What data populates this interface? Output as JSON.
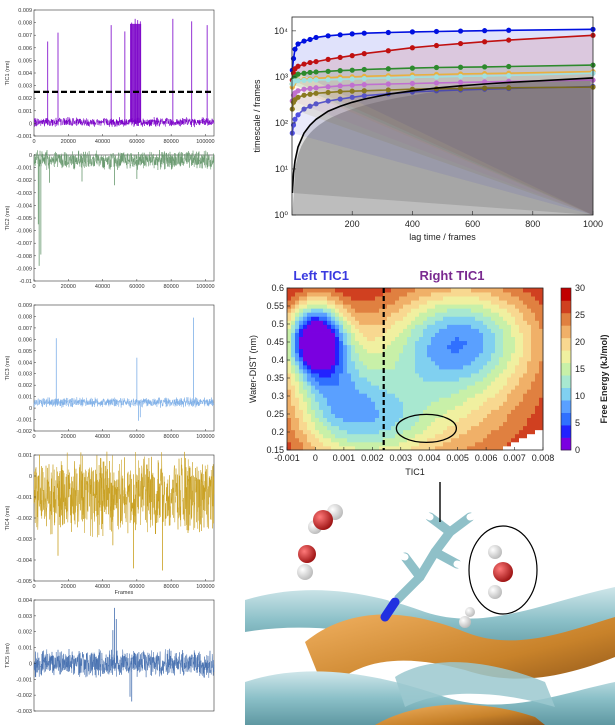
{
  "chart_data": [
    {
      "type": "line",
      "id": "tic1",
      "ylabel": "TIC1 (nm)",
      "ylim": [
        -0.001,
        0.009
      ],
      "yticks": [
        "-0.001",
        "0",
        "0.001",
        "0.002",
        "0.003",
        "0.004",
        "0.005",
        "0.006",
        "0.007",
        "0.008",
        "0.009"
      ],
      "xlim": [
        0,
        105000
      ],
      "xticks": [
        "0",
        "20000",
        "40000",
        "60000",
        "80000",
        "100000"
      ],
      "color": "#7a00c8",
      "baseline": 0.0001,
      "noise": 0.0006,
      "threshold": 0.0025,
      "spikes": [
        [
          8000,
          0.0065
        ],
        [
          14000,
          0.0072
        ],
        [
          45000,
          0.0078
        ],
        [
          53000,
          0.0073
        ],
        [
          57000,
          0.008
        ],
        [
          59000,
          0.0083
        ],
        [
          60500,
          0.0082
        ],
        [
          62000,
          0.0081
        ],
        [
          81000,
          0.0083
        ],
        [
          92000,
          0.0081
        ],
        [
          101000,
          0.0078
        ]
      ],
      "block": [
        56000,
        62500
      ]
    },
    {
      "type": "line",
      "id": "tic2",
      "ylabel": "TIC2 (nm)",
      "ylim": [
        -0.01,
        0
      ],
      "yticks": [
        "-0.01",
        "-0.009",
        "-0.008",
        "-0.007",
        "-0.006",
        "-0.005",
        "-0.004",
        "-0.003",
        "-0.002",
        "-0.001",
        "0"
      ],
      "xlim": [
        0,
        105000
      ],
      "xticks": [
        "0",
        "20000",
        "40000",
        "60000",
        "80000",
        "100000"
      ],
      "color": "#6a9a70",
      "baseline": -0.0004,
      "noise": 0.0012,
      "spikes": [
        [
          3000,
          -0.0088
        ],
        [
          4000,
          -0.0079
        ],
        [
          2500,
          -0.0055
        ],
        [
          9000,
          -0.0022
        ],
        [
          28000,
          -0.0021
        ],
        [
          47000,
          -0.0024
        ],
        [
          60000,
          -0.0019
        ]
      ]
    },
    {
      "type": "line",
      "id": "tic3",
      "ylabel": "TIC3 (nm)",
      "ylim": [
        -0.002,
        0.009
      ],
      "yticks": [
        "-0.002",
        "-0.001",
        "0",
        "0.001",
        "0.002",
        "0.003",
        "0.004",
        "0.005",
        "0.006",
        "0.007",
        "0.008",
        "0.009"
      ],
      "xlim": [
        0,
        105000
      ],
      "xticks": [
        "0",
        "20000",
        "40000",
        "60000",
        "80000",
        "100000"
      ],
      "color": "#7fb0e8",
      "baseline": 0.0005,
      "noise": 0.0007,
      "spikes": [
        [
          13000,
          0.0061
        ],
        [
          60000,
          0.0044
        ],
        [
          93000,
          0.0079
        ],
        [
          61000,
          -0.0011
        ],
        [
          62000,
          -0.0008
        ]
      ]
    },
    {
      "type": "line",
      "id": "tic4",
      "ylabel": "TIC4 (nm)",
      "ylim": [
        -0.005,
        0.001
      ],
      "yticks": [
        "-0.005",
        "-0.004",
        "-0.003",
        "-0.002",
        "-0.001",
        "0",
        "0.001"
      ],
      "xlim": [
        0,
        105000
      ],
      "xticks": [
        "0",
        "20000",
        "40000",
        "60000",
        "80000",
        "100000"
      ],
      "xlabel": "Frames",
      "color": "#c9a020",
      "baseline": -0.0009,
      "noise": 0.0031,
      "spikes": [
        [
          58000,
          -0.0044
        ],
        [
          75000,
          -0.0045
        ],
        [
          14000,
          -0.0038
        ],
        [
          46000,
          -0.0033
        ]
      ]
    },
    {
      "type": "line",
      "id": "tic5",
      "ylabel": "TIC5 (nm)",
      "ylim": [
        -0.003,
        0.004
      ],
      "yticks": [
        "-0.003",
        "-0.002",
        "-0.001",
        "0",
        "0.001",
        "0.002",
        "0.003",
        "0.004"
      ],
      "xlim": [
        0,
        105000
      ],
      "xticks": [],
      "color": "#4670b0",
      "baseline": 0,
      "noise": 0.0014,
      "spikes": [
        [
          47000,
          0.0035
        ],
        [
          48000,
          0.0028
        ],
        [
          56000,
          -0.0021
        ],
        [
          57000,
          -0.0024
        ],
        [
          46000,
          0.0021
        ]
      ]
    },
    {
      "type": "line",
      "id": "timescales",
      "xlabel": "lag time / frames",
      "ylabel": "timescale / frames",
      "xlim": [
        0,
        1000
      ],
      "ylim": [
        1,
        20000
      ],
      "yscale": "log",
      "xticks": [
        200,
        400,
        600,
        800,
        1000
      ],
      "yticks": [
        1,
        10,
        100,
        1000,
        10000
      ],
      "ytick_labels": [
        "10⁰",
        "10¹",
        "10²",
        "10³",
        "10⁴"
      ],
      "x": [
        1,
        5,
        10,
        20,
        40,
        60,
        80,
        120,
        160,
        200,
        240,
        320,
        400,
        480,
        560,
        640,
        720,
        1000
      ],
      "series": [
        {
          "color": "#0010e0",
          "values": [
            1400,
            2500,
            4000,
            5200,
            6000,
            6500,
            7200,
            7800,
            8200,
            8600,
            8900,
            9200,
            9500,
            9700,
            9900,
            10100,
            10300,
            10800
          ]
        },
        {
          "color": "#c01010",
          "values": [
            850,
            1200,
            1500,
            1700,
            1900,
            2050,
            2150,
            2400,
            2650,
            2900,
            3200,
            3700,
            4300,
            4800,
            5300,
            5800,
            6300,
            8000
          ]
        },
        {
          "color": "#2d8a2d",
          "values": [
            700,
            900,
            1000,
            1150,
            1200,
            1250,
            1280,
            1320,
            1370,
            1400,
            1450,
            1500,
            1550,
            1600,
            1620,
            1650,
            1680,
            1800
          ]
        },
        {
          "color": "#e8b040",
          "values": [
            600,
            700,
            800,
            850,
            880,
            900,
            930,
            960,
            990,
            1000,
            1030,
            1060,
            1100,
            1130,
            1160,
            1180,
            1200,
            1300
          ]
        },
        {
          "color": "#a0e0e0",
          "values": [
            700,
            800,
            820,
            830,
            840,
            850,
            860,
            870,
            880,
            900,
            920,
            950,
            980,
            1000,
            1030,
            1050,
            1070,
            1200
          ]
        },
        {
          "color": "#c070d0",
          "values": [
            300,
            400,
            450,
            500,
            540,
            560,
            580,
            610,
            640,
            660,
            680,
            700,
            720,
            740,
            760,
            780,
            800,
            850
          ]
        },
        {
          "color": "#5050e0",
          "values": [
            60,
            90,
            120,
            150,
            200,
            230,
            260,
            300,
            330,
            360,
            390,
            430,
            470,
            500,
            520,
            540,
            560,
            620
          ]
        },
        {
          "color": "#8a7a20",
          "values": [
            200,
            280,
            320,
            360,
            400,
            420,
            440,
            460,
            480,
            490,
            500,
            520,
            540,
            550,
            560,
            570,
            580,
            600
          ]
        },
        {
          "color": "#000000",
          "values": [
            3,
            8,
            15,
            30,
            60,
            90,
            120,
            180,
            230,
            280,
            330,
            420,
            500,
            570,
            640,
            700,
            760,
            950
          ]
        }
      ]
    },
    {
      "type": "heatmap",
      "xlabel": "TIC1",
      "ylabel": "Water-DIST (nm)",
      "colorbar_label": "Free Energy (kJ/mol)",
      "xlim": [
        -0.001,
        0.008
      ],
      "ylim": [
        0.15,
        0.6
      ],
      "xticks": [
        "-0.001",
        "0",
        "0.001",
        "0.002",
        "0.003",
        "0.004",
        "0.005",
        "0.006",
        "0.007",
        "0.008"
      ],
      "yticks": [
        "0.15",
        "0.2",
        "0.25",
        "0.3",
        "0.35",
        "0.4",
        "0.45",
        "0.5",
        "0.55",
        "0.6"
      ],
      "colorbar_ticks": [
        "0",
        "5",
        "10",
        "15",
        "20",
        "25",
        "30"
      ],
      "left_label": "Left TIC1",
      "right_label": "Right TIC1",
      "divider_x": 0.0024
    }
  ]
}
